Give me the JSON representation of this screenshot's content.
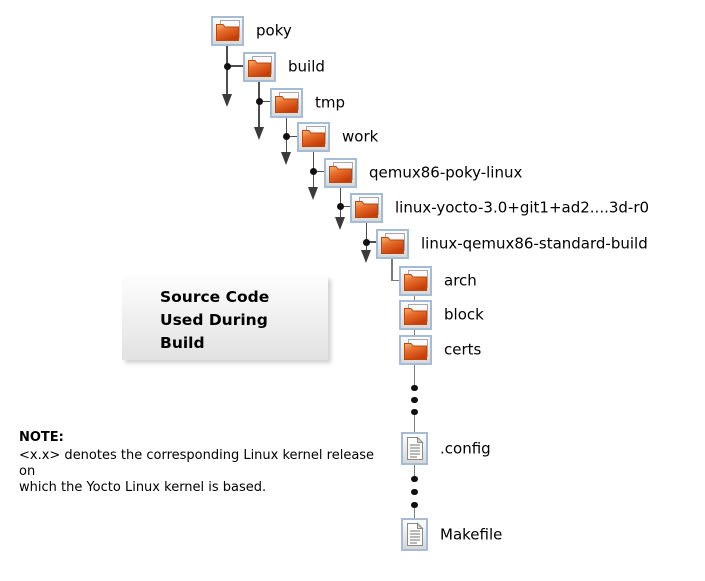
{
  "tree": {
    "nodes": [
      {
        "id": "poky",
        "label": "poky",
        "icon": "folder"
      },
      {
        "id": "build",
        "label": "build",
        "icon": "folder"
      },
      {
        "id": "tmp",
        "label": "tmp",
        "icon": "folder"
      },
      {
        "id": "work",
        "label": "work",
        "icon": "folder"
      },
      {
        "id": "qemux86-poky-linux",
        "label": "qemux86-poky-linux",
        "icon": "folder"
      },
      {
        "id": "linux-yocto",
        "label": "linux-yocto-3.0+git1+ad2....3d-r0",
        "icon": "folder"
      },
      {
        "id": "linux-qemux86-standard-build",
        "label": "linux-qemux86-standard-build",
        "icon": "folder"
      },
      {
        "id": "arch",
        "label": "arch",
        "icon": "folder"
      },
      {
        "id": "block",
        "label": "block",
        "icon": "folder"
      },
      {
        "id": "certs",
        "label": "certs",
        "icon": "folder"
      },
      {
        "id": "dot-config",
        "label": ".config",
        "icon": "file"
      },
      {
        "id": "makefile",
        "label": "Makefile",
        "icon": "file"
      }
    ]
  },
  "title_box": {
    "line1": "Source Code",
    "line2": "Used During",
    "line3": "Build"
  },
  "note": {
    "heading": "NOTE:",
    "line1": "<x.x> denotes the corresponding Linux kernel release on",
    "line2": "which the Yocto Linux kernel is based."
  },
  "colors": {
    "folder_orange": "#e8702d",
    "folder_orange_dark": "#c83c08",
    "icon_frame_blue": "#a4bcd6",
    "line_gray": "#4d4d4d",
    "arrow_gray": "#3b3b3b"
  }
}
